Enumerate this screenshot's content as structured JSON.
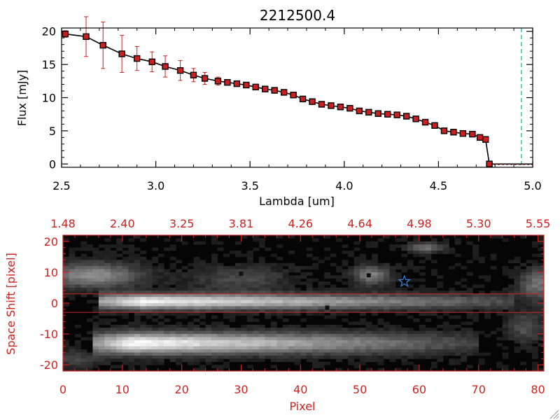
{
  "chart_data": [
    {
      "type": "line",
      "title": "2212500.4",
      "xlabel": "Lambda [um]",
      "ylabel": "Flux [mJy]",
      "xlim": [
        2.5,
        5.0
      ],
      "ylim": [
        -0.5,
        20.5
      ],
      "xticks": [
        "2.5",
        "3.0",
        "3.5",
        "4.0",
        "4.5",
        "5.0"
      ],
      "yticks": [
        "0",
        "5",
        "10",
        "15",
        "20"
      ],
      "series": [
        {
          "x": [
            2.52,
            2.63,
            2.72,
            2.82,
            2.9,
            2.98,
            3.05,
            3.13,
            3.2,
            3.26,
            3.33,
            3.38,
            3.43,
            3.48,
            3.53,
            3.58,
            3.63,
            3.68,
            3.73,
            3.78,
            3.83,
            3.88,
            3.93,
            3.98,
            4.03,
            4.08,
            4.13,
            4.18,
            4.23,
            4.28,
            4.33,
            4.38,
            4.43,
            4.48,
            4.53,
            4.58,
            4.63,
            4.68,
            4.72,
            4.75
          ],
          "y": [
            19.6,
            19.2,
            17.9,
            16.6,
            15.9,
            15.4,
            14.7,
            14.1,
            13.4,
            12.9,
            12.5,
            12.3,
            12.1,
            11.9,
            11.6,
            11.3,
            11.1,
            10.8,
            10.4,
            9.8,
            9.4,
            9.0,
            8.8,
            8.6,
            8.4,
            8.0,
            7.8,
            7.6,
            7.5,
            7.4,
            7.2,
            6.8,
            6.3,
            5.8,
            5.0,
            4.8,
            4.6,
            4.5,
            4.0,
            3.7
          ],
          "yerr": [
            0.5,
            3.0,
            3.5,
            2.8,
            1.8,
            1.5,
            1.6,
            1.5,
            1.0,
            0.9,
            0.6,
            0.4,
            0.3,
            0.3,
            0.3,
            0.2,
            0.2,
            0.2,
            0.2,
            0.2,
            0.2,
            0.2,
            0.2,
            0.2,
            0.2,
            0.2,
            0.2,
            0.2,
            0.2,
            0.2,
            0.2,
            0.2,
            0.2,
            0.2,
            0.2,
            0.2,
            0.2,
            0.2,
            0.2,
            0.2
          ]
        }
      ],
      "tail": {
        "x": [
          4.75,
          4.77,
          5.0
        ],
        "y": [
          3.7,
          0.0,
          0.0
        ]
      },
      "vline_x": 4.94,
      "colors": {
        "line": "#000000",
        "marker_fill": "#cc1f1f",
        "errorbar": "#cc2222",
        "vline": "#22aa88"
      }
    },
    {
      "type": "heatmap",
      "xlabel": "Pixel",
      "ylabel": "Space Shift [pixel]",
      "xlim": [
        0,
        81
      ],
      "ylim": [
        -22,
        22
      ],
      "xticks": [
        "0",
        "10",
        "20",
        "30",
        "40",
        "50",
        "60",
        "70",
        "80"
      ],
      "yticks": [
        "-20",
        "-10",
        "0",
        "10",
        "20"
      ],
      "top_ticks": [
        "1.48",
        "2.40",
        "3.25",
        "3.81",
        "4.26",
        "4.64",
        "4.98",
        "5.30",
        "5.55"
      ],
      "hlines_y": [
        3,
        -3
      ],
      "star": {
        "x": 57.5,
        "y": 7
      },
      "colors": {
        "axis": "#cc2222",
        "star": "#3a7bd5"
      }
    }
  ]
}
